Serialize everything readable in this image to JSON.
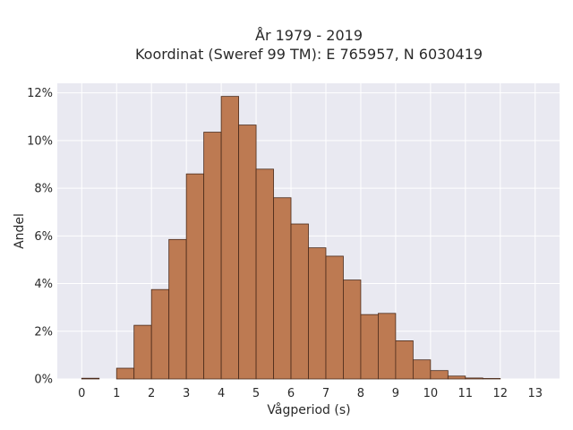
{
  "chart_data": {
    "type": "bar",
    "title_line1": "År 1979 - 2019",
    "title_line2": "Koordinat (Sweref 99 TM): E 765957, N 6030419",
    "xlabel": "Vågperiod (s)",
    "ylabel": "Andel",
    "x_ticks": [
      0,
      1,
      2,
      3,
      4,
      5,
      6,
      7,
      8,
      9,
      10,
      11,
      12,
      13
    ],
    "y_ticks": [
      0,
      2,
      4,
      6,
      8,
      10,
      12
    ],
    "y_tick_suffix": "%",
    "xlim": [
      -0.7,
      13.7
    ],
    "ylim": [
      0,
      12.4
    ],
    "bin_width": 0.5,
    "bins": [
      {
        "start": 0.0,
        "value": 0.03
      },
      {
        "start": 1.0,
        "value": 0.45
      },
      {
        "start": 1.5,
        "value": 2.25
      },
      {
        "start": 2.0,
        "value": 3.75
      },
      {
        "start": 2.5,
        "value": 5.85
      },
      {
        "start": 3.0,
        "value": 8.6
      },
      {
        "start": 3.5,
        "value": 10.35
      },
      {
        "start": 4.0,
        "value": 11.85
      },
      {
        "start": 4.5,
        "value": 10.65
      },
      {
        "start": 5.0,
        "value": 8.8
      },
      {
        "start": 5.5,
        "value": 7.6
      },
      {
        "start": 6.0,
        "value": 6.5
      },
      {
        "start": 6.5,
        "value": 5.5
      },
      {
        "start": 7.0,
        "value": 5.15
      },
      {
        "start": 7.5,
        "value": 4.15
      },
      {
        "start": 8.0,
        "value": 2.7
      },
      {
        "start": 8.5,
        "value": 2.75
      },
      {
        "start": 9.0,
        "value": 1.6
      },
      {
        "start": 9.5,
        "value": 0.8
      },
      {
        "start": 10.0,
        "value": 0.35
      },
      {
        "start": 10.5,
        "value": 0.12
      },
      {
        "start": 11.0,
        "value": 0.04
      },
      {
        "start": 11.5,
        "value": 0.02
      }
    ],
    "grid": true,
    "colors": {
      "bar_fill": "#bd7a52",
      "bar_edge": "#4a2a1a",
      "plot_bg": "#e9e9f1",
      "grid": "#ffffff"
    }
  }
}
